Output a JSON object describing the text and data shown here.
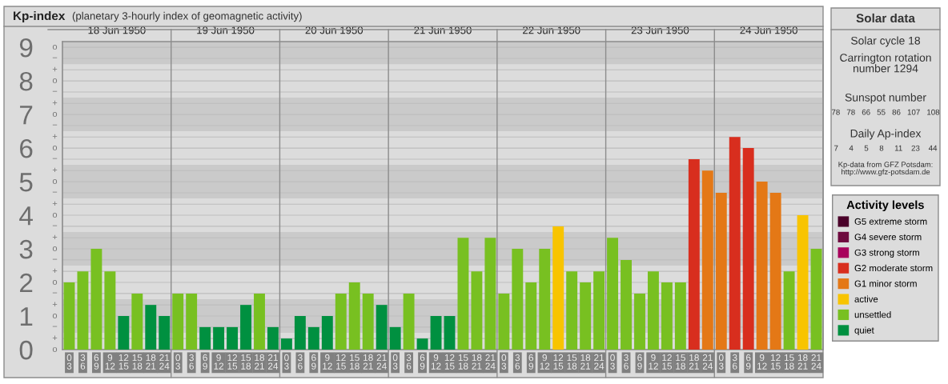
{
  "chart_data": [
    {
      "type": "bar",
      "title": "Kp-index",
      "subtitle": "(planetary 3-hourly index of geomagnetic activity)",
      "categories": [
        "0\n3",
        "3\n6",
        "6\n9",
        "9\n12",
        "12\n15",
        "15\n18",
        "18\n21",
        "21\n24",
        "0\n3",
        "3\n6",
        "6\n9",
        "9\n12",
        "12\n15",
        "15\n18",
        "18\n21",
        "21\n24",
        "0\n3",
        "3\n6",
        "6\n9",
        "9\n12",
        "12\n15",
        "15\n18",
        "18\n21",
        "21\n24",
        "0\n3",
        "3\n6",
        "6\n9",
        "9\n12",
        "12\n15",
        "15\n18",
        "18\n21",
        "21\n24",
        "0\n3",
        "3\n6",
        "6\n9",
        "9\n12",
        "12\n15",
        "15\n18",
        "18\n21",
        "21\n24",
        "0\n3",
        "3\n6",
        "6\n9",
        "9\n12",
        "12\n15",
        "15\n18",
        "18\n21",
        "21\n24",
        "0\n3",
        "3\n6",
        "6\n9",
        "9\n12",
        "12\n15",
        "15\n18",
        "18\n21",
        "21\n24"
      ],
      "annotations": [
        "18 Jun 1950",
        "19 Jun 1950",
        "20 Jun 1950",
        "21 Jun 1950",
        "22 Jun 1950",
        "23 Jun 1950",
        "24 Jun 1950",
        "o",
        "+",
        "−",
        "o",
        "+",
        "−",
        "o",
        "+",
        "−",
        "o",
        "+",
        "−",
        "o",
        "+",
        "−",
        "o",
        "+",
        "−",
        "o",
        "+",
        "−",
        "o",
        "+",
        "−",
        "o",
        "+",
        "−",
        "o"
      ],
      "series": [
        {
          "name": "G5 extreme storm",
          "color": "#4a0029",
          "values": [
            null,
            null,
            null,
            null,
            null,
            null,
            null,
            null,
            null,
            null,
            null,
            null,
            null,
            null,
            null,
            null,
            null,
            null,
            null,
            null,
            null,
            null,
            null,
            null,
            null,
            null,
            null,
            null,
            null,
            null,
            null,
            null,
            null,
            null,
            null,
            null,
            null,
            null,
            null,
            null,
            null,
            null,
            null,
            null,
            null,
            null,
            null,
            null,
            null,
            null,
            null,
            null,
            null,
            null,
            null,
            null
          ]
        },
        {
          "name": "G4 severe storm",
          "color": "#6e0a3e",
          "values": [
            null,
            null,
            null,
            null,
            null,
            null,
            null,
            null,
            null,
            null,
            null,
            null,
            null,
            null,
            null,
            null,
            null,
            null,
            null,
            null,
            null,
            null,
            null,
            null,
            null,
            null,
            null,
            null,
            null,
            null,
            null,
            null,
            null,
            null,
            null,
            null,
            null,
            null,
            null,
            null,
            null,
            null,
            null,
            null,
            null,
            null,
            null,
            null,
            null,
            null,
            null,
            null,
            null,
            null,
            null,
            null
          ]
        },
        {
          "name": "G3 strong storm",
          "color": "#a8005c",
          "values": [
            null,
            null,
            null,
            null,
            null,
            null,
            null,
            null,
            null,
            null,
            null,
            null,
            null,
            null,
            null,
            null,
            null,
            null,
            null,
            null,
            null,
            null,
            null,
            null,
            null,
            null,
            null,
            null,
            null,
            null,
            null,
            null,
            null,
            null,
            null,
            null,
            null,
            null,
            null,
            null,
            null,
            null,
            null,
            null,
            null,
            null,
            null,
            null,
            null,
            null,
            null,
            null,
            null,
            null,
            null,
            null
          ]
        },
        {
          "name": "G2 moderate storm",
          "color": "#d82e1e",
          "values": [
            null,
            null,
            null,
            null,
            null,
            null,
            null,
            null,
            null,
            null,
            null,
            null,
            null,
            null,
            null,
            null,
            null,
            null,
            null,
            null,
            null,
            null,
            null,
            null,
            null,
            null,
            null,
            null,
            null,
            null,
            null,
            null,
            null,
            null,
            null,
            null,
            null,
            null,
            null,
            null,
            null,
            null,
            null,
            null,
            null,
            null,
            5.67,
            null,
            null,
            6.33,
            6.0,
            null,
            null,
            null,
            null,
            null
          ]
        },
        {
          "name": "G1 minor storm",
          "color": "#e47816",
          "values": [
            null,
            null,
            null,
            null,
            null,
            null,
            null,
            null,
            null,
            null,
            null,
            null,
            null,
            null,
            null,
            null,
            null,
            null,
            null,
            null,
            null,
            null,
            null,
            null,
            null,
            null,
            null,
            null,
            null,
            null,
            null,
            null,
            null,
            null,
            null,
            null,
            null,
            null,
            null,
            null,
            null,
            null,
            null,
            null,
            null,
            null,
            null,
            5.33,
            4.67,
            null,
            null,
            5.0,
            4.67,
            null,
            null,
            null
          ]
        },
        {
          "name": "active",
          "color": "#f8c400",
          "values": [
            null,
            null,
            null,
            null,
            null,
            null,
            null,
            null,
            null,
            null,
            null,
            null,
            null,
            null,
            null,
            null,
            null,
            null,
            null,
            null,
            null,
            null,
            null,
            null,
            null,
            null,
            null,
            null,
            null,
            null,
            null,
            null,
            null,
            null,
            null,
            null,
            3.67,
            null,
            null,
            null,
            null,
            null,
            null,
            null,
            null,
            null,
            null,
            null,
            null,
            null,
            null,
            null,
            null,
            null,
            4.0,
            null
          ]
        },
        {
          "name": "unsettled",
          "color": "#78c021",
          "values": [
            2.0,
            2.33,
            3.0,
            2.33,
            null,
            1.67,
            null,
            null,
            1.67,
            1.67,
            null,
            null,
            null,
            null,
            1.67,
            null,
            null,
            null,
            null,
            null,
            1.67,
            2.0,
            1.67,
            null,
            null,
            1.67,
            null,
            null,
            null,
            3.33,
            2.33,
            3.33,
            1.67,
            3.0,
            2.0,
            3.0,
            null,
            2.33,
            2.0,
            2.33,
            3.33,
            2.67,
            1.67,
            2.33,
            2.0,
            2.0,
            null,
            null,
            null,
            null,
            null,
            null,
            null,
            2.33,
            null,
            3.0
          ]
        },
        {
          "name": "quiet",
          "color": "#009040",
          "values": [
            null,
            null,
            null,
            null,
            1.0,
            null,
            1.33,
            1.0,
            null,
            null,
            0.67,
            0.67,
            0.67,
            1.33,
            null,
            0.67,
            0.33,
            1.0,
            0.67,
            1.0,
            null,
            null,
            null,
            1.33,
            0.67,
            null,
            0.33,
            1.0,
            1.0,
            null,
            null,
            null,
            null,
            null,
            null,
            null,
            null,
            null,
            null,
            null,
            null,
            null,
            null,
            null,
            null,
            null,
            null,
            null,
            null,
            null,
            null,
            null,
            null,
            null,
            null,
            null
          ]
        }
      ],
      "ylim": [
        0,
        9.17
      ],
      "yticks": [
        0,
        {
          "value": 0.33,
          "label": null
        },
        {
          "value": 0.67,
          "label": null
        },
        1,
        {
          "value": 1.33,
          "label": null
        },
        {
          "value": 1.67,
          "label": null
        },
        2,
        {
          "value": 2.33,
          "label": null
        },
        {
          "value": 2.67,
          "label": null
        },
        3,
        {
          "value": 3.33,
          "label": null
        },
        {
          "value": 3.67,
          "label": null
        },
        4,
        {
          "value": 4.33,
          "label": null
        },
        {
          "value": 4.67,
          "label": null
        },
        5,
        {
          "value": 5.33,
          "label": null
        },
        {
          "value": 5.67,
          "label": null
        },
        6,
        {
          "value": 6.33,
          "label": null
        },
        {
          "value": 6.67,
          "label": null
        },
        7,
        {
          "value": 7.33,
          "label": null
        },
        {
          "value": 7.67,
          "label": null
        },
        8,
        {
          "value": 8.33,
          "label": null
        },
        {
          "value": 8.67,
          "label": null
        },
        9
      ],
      "bands": [
        {
          "axis": "y",
          "from": 0.5,
          "to": 1.5,
          "color": "#cacaca"
        },
        {
          "axis": "y",
          "from": 2.5,
          "to": 3.5,
          "color": "#cacaca"
        },
        {
          "axis": "y",
          "from": 4.5,
          "to": 5.5,
          "color": "#cacaca"
        },
        {
          "axis": "y",
          "from": 6.5,
          "to": 7.5,
          "color": "#cacaca"
        },
        {
          "axis": "y",
          "from": 8.5,
          "to": 9.17,
          "color": "#cacaca"
        }
      ],
      "grid": true,
      "legend": "right",
      "legend_title": "Activity levels"
    },
    {
      "type": "other",
      "title": "Solar data",
      "annotations": [
        "Solar cycle 18",
        "Carrington rotation\nnumber 1294",
        "Sunspot number",
        "78   78   66   55   86   107   108",
        "Daily Ap-index",
        "7     4     5     8     11    23    44",
        "Kp-data from GFZ Potsdam:\nhttp://www.gfz-potsdam.de"
      ]
    }
  ]
}
